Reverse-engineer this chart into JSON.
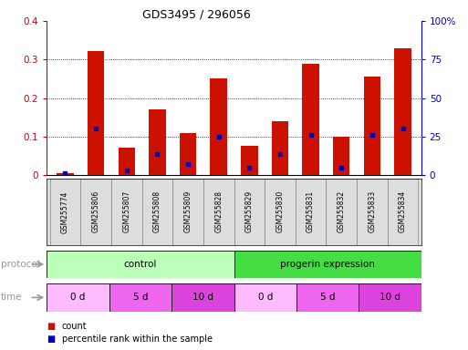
{
  "title": "GDS3495 / 296056",
  "samples": [
    "GSM255774",
    "GSM255806",
    "GSM255807",
    "GSM255808",
    "GSM255809",
    "GSM255828",
    "GSM255829",
    "GSM255830",
    "GSM255831",
    "GSM255832",
    "GSM255833",
    "GSM255834"
  ],
  "red_values": [
    0.005,
    0.322,
    0.07,
    0.17,
    0.11,
    0.25,
    0.075,
    0.14,
    0.29,
    0.1,
    0.255,
    0.328
  ],
  "blue_values": [
    0.005,
    0.12,
    0.012,
    0.055,
    0.028,
    0.1,
    0.018,
    0.055,
    0.105,
    0.018,
    0.105,
    0.12
  ],
  "ylim": [
    0,
    0.4
  ],
  "yticks": [
    0,
    0.1,
    0.2,
    0.3,
    0.4
  ],
  "yticks_right": [
    0,
    25,
    50,
    75,
    100
  ],
  "ytick_labels_left": [
    "0",
    "0.1",
    "0.2",
    "0.3",
    "0.4"
  ],
  "ytick_labels_right": [
    "0",
    "25",
    "50",
    "75",
    "100%"
  ],
  "bar_color_red": "#cc1100",
  "bar_color_blue": "#0000bb",
  "protocol_groups": [
    {
      "label": "control",
      "start": 0,
      "end": 6,
      "color": "#bbffbb"
    },
    {
      "label": "progerin expression",
      "start": 6,
      "end": 12,
      "color": "#44dd44"
    }
  ],
  "time_groups": [
    {
      "label": "0 d",
      "start": 0,
      "end": 2,
      "color": "#ffbbff"
    },
    {
      "label": "5 d",
      "start": 2,
      "end": 4,
      "color": "#ee66ee"
    },
    {
      "label": "10 d",
      "start": 4,
      "end": 6,
      "color": "#dd44dd"
    },
    {
      "label": "0 d",
      "start": 6,
      "end": 8,
      "color": "#ffbbff"
    },
    {
      "label": "5 d",
      "start": 8,
      "end": 10,
      "color": "#ee66ee"
    },
    {
      "label": "10 d",
      "start": 10,
      "end": 12,
      "color": "#dd44dd"
    }
  ],
  "label_count": "count",
  "label_percentile": "percentile rank within the sample",
  "tick_label_color_left": "#cc0000",
  "tick_label_color_right": "#0000bb",
  "bg_color": "#ffffff",
  "axis_label_color": "#999999",
  "sample_box_color": "#dddddd"
}
